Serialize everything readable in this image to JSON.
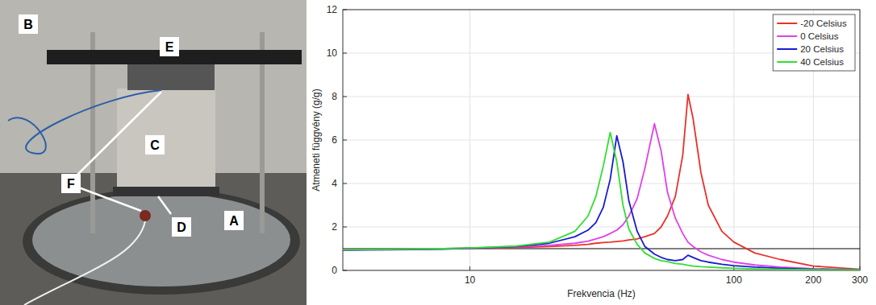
{
  "chart_data": {
    "type": "line",
    "x_label": "Frekvencia (Hz)",
    "y_label": "Atmeneti függvény (g/g)",
    "log": "x",
    "grid": true,
    "legend": "upper right",
    "xlim": [
      3.3,
      300
    ],
    "ylim": [
      0,
      12
    ],
    "xticks": [
      10,
      100,
      200,
      300
    ],
    "yticks": [
      0,
      2,
      4,
      6,
      8,
      10,
      12
    ],
    "hline": 1,
    "x": [
      3.3,
      5,
      8,
      10,
      15,
      20,
      25,
      28,
      30,
      32,
      34,
      36,
      38,
      40,
      43,
      46,
      50,
      53,
      56,
      60,
      64,
      67,
      70,
      75,
      80,
      90,
      100,
      120,
      150,
      200,
      300
    ],
    "series": [
      {
        "name": "-20 Celsius",
        "color": "#e8322a",
        "values": [
          0.95,
          0.97,
          1.0,
          1.02,
          1.05,
          1.1,
          1.15,
          1.2,
          1.25,
          1.28,
          1.3,
          1.33,
          1.36,
          1.4,
          1.45,
          1.55,
          1.7,
          2.0,
          2.5,
          3.4,
          5.3,
          8.1,
          7.0,
          4.5,
          3.0,
          1.8,
          1.3,
          0.8,
          0.5,
          0.2,
          0.05
        ]
      },
      {
        "name": "0 Celsius",
        "color": "#e040e8",
        "values": [
          0.95,
          0.97,
          1.0,
          1.02,
          1.08,
          1.15,
          1.25,
          1.35,
          1.45,
          1.55,
          1.7,
          1.85,
          2.1,
          2.5,
          3.3,
          4.7,
          6.75,
          5.5,
          3.6,
          2.4,
          1.7,
          1.3,
          1.1,
          0.85,
          0.7,
          0.5,
          0.38,
          0.25,
          0.15,
          0.08,
          0.03
        ]
      },
      {
        "name": "20 Celsius",
        "color": "#1a1ad0",
        "values": [
          0.93,
          0.95,
          0.98,
          1.02,
          1.1,
          1.25,
          1.55,
          1.85,
          2.2,
          2.9,
          4.2,
          6.2,
          5.0,
          3.2,
          1.8,
          1.1,
          0.75,
          0.6,
          0.5,
          0.45,
          0.5,
          0.7,
          0.6,
          0.45,
          0.38,
          0.28,
          0.22,
          0.15,
          0.1,
          0.05,
          0.02
        ]
      },
      {
        "name": "40 Celsius",
        "color": "#33dd33",
        "values": [
          0.95,
          0.97,
          1.0,
          1.03,
          1.12,
          1.3,
          1.8,
          2.5,
          3.4,
          4.8,
          6.35,
          5.0,
          3.0,
          1.9,
          1.2,
          0.8,
          0.55,
          0.45,
          0.4,
          0.32,
          0.28,
          0.24,
          0.2,
          0.17,
          0.15,
          0.12,
          0.1,
          0.07,
          0.05,
          0.03,
          0.02
        ]
      }
    ]
  },
  "photo": {
    "labels": [
      "A",
      "B",
      "C",
      "D",
      "E",
      "F"
    ]
  }
}
